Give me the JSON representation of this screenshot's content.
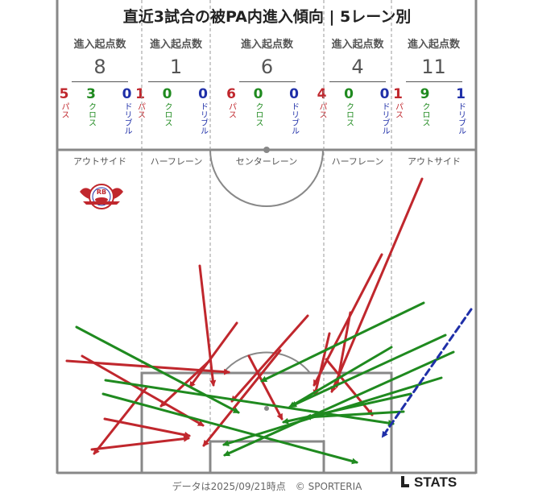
{
  "title": "直近3試合の被PA内進入傾向 | 5レーン別",
  "header_label": "進入起点数",
  "lanes": [
    {
      "name": "アウトサイド",
      "total": "8",
      "pass": "5",
      "cross": "3",
      "dribble": "0"
    },
    {
      "name": "ハーフレーン",
      "total": "1",
      "pass": "1",
      "cross": "0",
      "dribble": "0"
    },
    {
      "name": "センターレーン",
      "total": "6",
      "pass": "6",
      "cross": "0",
      "dribble": "0"
    },
    {
      "name": "ハーフレーン",
      "total": "4",
      "pass": "4",
      "cross": "0",
      "dribble": "0"
    },
    {
      "name": "アウトサイド",
      "total": "11",
      "pass": "1",
      "cross": "9",
      "dribble": "1"
    }
  ],
  "categories": {
    "pass": "パス",
    "cross": "クロス",
    "dribble": "ドリブル"
  },
  "badge_text": "RB",
  "colors": {
    "pass": "#c0272d",
    "cross": "#1f8a1f",
    "dribble": "#1f2fa8",
    "pitch": "#888888"
  },
  "footer": "データは2025/09/21時点　© SPORTERIA",
  "brand": "STATS"
}
